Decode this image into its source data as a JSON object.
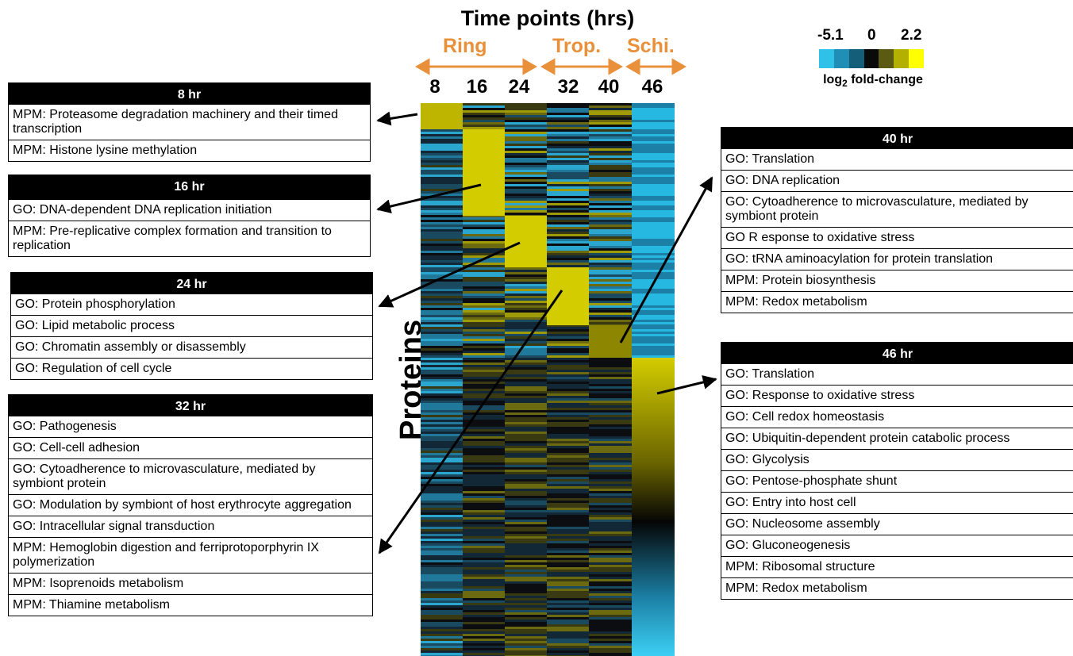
{
  "figure": {
    "title": "Time points (hrs)",
    "phases": [
      {
        "label": "Ring"
      },
      {
        "label": "Trop."
      },
      {
        "label": "Schi."
      }
    ],
    "time_points": [
      "8",
      "16",
      "24",
      "32",
      "40",
      "46"
    ],
    "y_axis_label": "Proteins",
    "legend": {
      "min": "-5.1",
      "mid": "0",
      "max": "2.2",
      "caption_main": "log",
      "caption_sub": "2",
      "caption_rest": " fold-change",
      "colors": [
        "#2fc1e8",
        "#1f8fb5",
        "#155e79",
        "#0a0a0a",
        "#5b5a12",
        "#b3b000",
        "#ffff00"
      ]
    }
  },
  "boxes": {
    "b8": {
      "header": "8 hr",
      "rows": [
        "MPM: Proteasome degradation machinery and their timed transcription",
        "MPM: Histone lysine methylation"
      ]
    },
    "b16": {
      "header": "16 hr",
      "rows": [
        "GO: DNA-dependent DNA replication initiation",
        "MPM: Pre-replicative complex formation and transition to replication"
      ]
    },
    "b24": {
      "header": "24 hr",
      "rows": [
        "GO: Protein phosphorylation",
        "GO: Lipid metabolic process",
        "GO: Chromatin assembly or disassembly",
        "GO: Regulation of cell cycle"
      ]
    },
    "b32": {
      "header": "32 hr",
      "rows": [
        "GO: Pathogenesis",
        "GO: Cell-cell adhesion",
        "GO: Cytoadherence to microvasculature, mediated by symbiont protein",
        "GO: Modulation by symbiont of host erythrocyte aggregation",
        "GO: Intracellular signal transduction",
        "MPM: Hemoglobin digestion and ferriprotoporphyrin IX polymerization",
        "MPM: Isoprenoids metabolism",
        "MPM: Thiamine metabolism"
      ]
    },
    "b40": {
      "header": "40 hr",
      "rows": [
        "GO: Translation",
        "GO: DNA replication",
        "GO: Cytoadherence to microvasculature, mediated by symbiont protein",
        "GO R esponse to oxidative stress",
        "GO: tRNA aminoacylation for protein translation",
        "MPM: Protein biosynthesis",
        "MPM: Redox metabolism"
      ]
    },
    "b46": {
      "header": "46 hr",
      "rows": [
        "GO: Translation",
        "GO: Response to oxidative stress",
        "GO: Cell redox homeostasis",
        "GO: Ubiquitin-dependent protein catabolic process",
        "GO: Glycolysis",
        "GO: Pentose-phosphate shunt",
        "GO: Entry into host cell",
        "GO: Nucleosome assembly",
        "GO: Gluconeogenesis",
        "MPM: Ribosomal structure",
        "MPM: Redox metabolism"
      ]
    }
  }
}
